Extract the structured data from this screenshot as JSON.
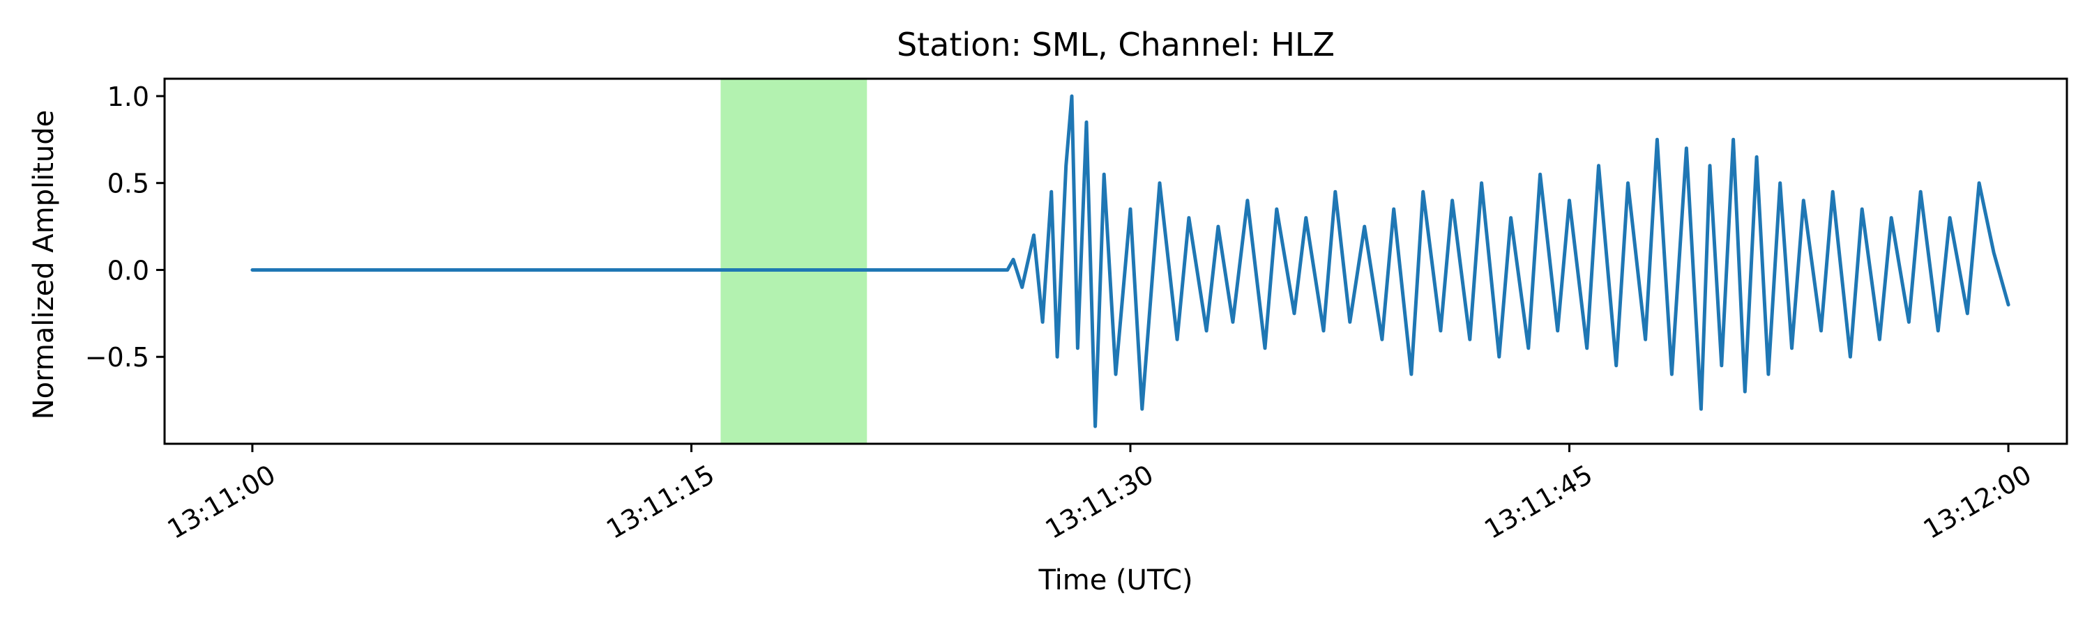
{
  "chart_data": {
    "type": "line",
    "title": "Station: SML, Channel: HLZ",
    "xlabel": "Time (UTC)",
    "ylabel": "Normalized Amplitude",
    "x_range": [
      "13:10:57",
      "13:12:02"
    ],
    "ylim": [
      -1.0,
      1.1
    ],
    "x_ticks": [
      "13:11:00",
      "13:11:15",
      "13:11:30",
      "13:11:45",
      "13:12:00"
    ],
    "y_ticks": [
      1.0,
      0.5,
      0.0,
      -0.5
    ],
    "y_tick_labels": [
      "1.0",
      "0.5",
      "0.0",
      "−0.5"
    ],
    "grid": false,
    "highlight": {
      "start": "13:11:16",
      "end": "13:11:21",
      "color": "#b3f2b0"
    },
    "series": [
      {
        "color": "#1f77b4",
        "x": [
          "13:11:00",
          "13:11:25.8",
          "13:11:26",
          "13:11:26.3",
          "13:11:26.7",
          "13:11:27",
          "13:11:27.3",
          "13:11:27.5",
          "13:11:27.8",
          "13:11:28",
          "13:11:28.2",
          "13:11:28.5",
          "13:11:28.8",
          "13:11:29.1",
          "13:11:29.5",
          "13:11:30",
          "13:11:30.4",
          "13:11:31",
          "13:11:31.6",
          "13:11:32",
          "13:11:32.6",
          "13:11:33",
          "13:11:33.5",
          "13:11:34",
          "13:11:34.6",
          "13:11:35",
          "13:11:35.6",
          "13:11:36",
          "13:11:36.6",
          "13:11:37",
          "13:11:37.5",
          "13:11:38",
          "13:11:38.6",
          "13:11:39",
          "13:11:39.6",
          "13:11:40",
          "13:11:40.6",
          "13:11:41",
          "13:11:41.6",
          "13:11:42",
          "13:11:42.6",
          "13:11:43",
          "13:11:43.6",
          "13:11:44",
          "13:11:44.6",
          "13:11:45",
          "13:11:45.6",
          "13:11:46",
          "13:11:46.6",
          "13:11:47",
          "13:11:47.6",
          "13:11:48",
          "13:11:48.5",
          "13:11:49",
          "13:11:49.5",
          "13:11:49.8",
          "13:11:50.2",
          "13:11:50.6",
          "13:11:51",
          "13:11:51.4",
          "13:11:51.8",
          "13:11:52.2",
          "13:11:52.6",
          "13:11:53",
          "13:11:53.6",
          "13:11:54",
          "13:11:54.6",
          "13:11:55",
          "13:11:55.6",
          "13:11:56",
          "13:11:56.6",
          "13:11:57",
          "13:11:57.6",
          "13:11:58",
          "13:11:58.6",
          "13:11:59",
          "13:11:59.5",
          "13:12:00"
        ],
        "y": [
          0.0,
          0.0,
          0.06,
          -0.1,
          0.2,
          -0.3,
          0.45,
          -0.5,
          0.6,
          1.0,
          -0.45,
          0.85,
          -0.9,
          0.55,
          -0.6,
          0.35,
          -0.8,
          0.5,
          -0.4,
          0.3,
          -0.35,
          0.25,
          -0.3,
          0.4,
          -0.45,
          0.35,
          -0.25,
          0.3,
          -0.35,
          0.45,
          -0.3,
          0.25,
          -0.4,
          0.35,
          -0.6,
          0.45,
          -0.35,
          0.4,
          -0.4,
          0.5,
          -0.5,
          0.3,
          -0.45,
          0.55,
          -0.35,
          0.4,
          -0.45,
          0.6,
          -0.55,
          0.5,
          -0.4,
          0.75,
          -0.6,
          0.7,
          -0.8,
          0.6,
          -0.55,
          0.75,
          -0.7,
          0.65,
          -0.6,
          0.5,
          -0.45,
          0.4,
          -0.35,
          0.45,
          -0.5,
          0.35,
          -0.4,
          0.3,
          -0.3,
          0.45,
          -0.35,
          0.3,
          -0.25,
          0.5,
          0.1,
          -0.2
        ]
      }
    ]
  }
}
